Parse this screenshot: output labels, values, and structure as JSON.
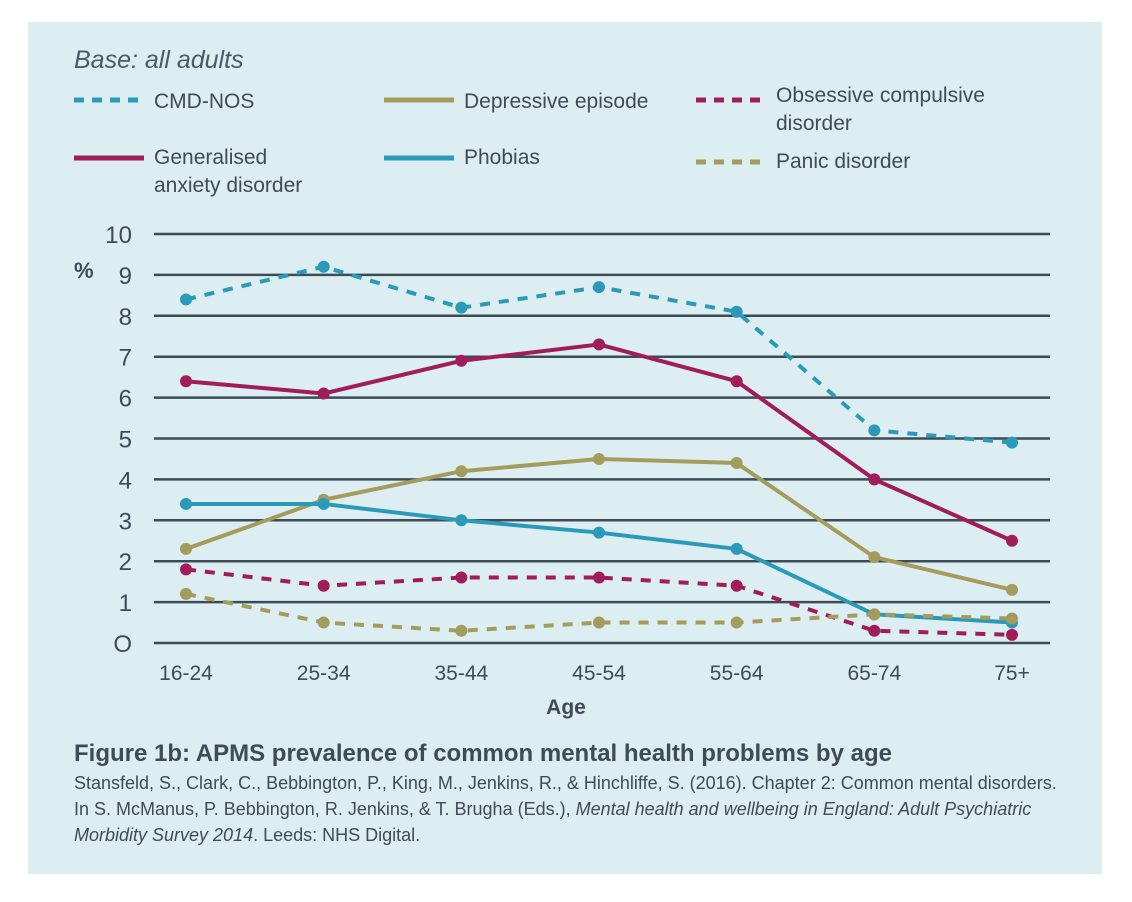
{
  "base_label": "Base: all adults",
  "legend": [
    {
      "label": "CMD-NOS",
      "color": "#2a9ab8",
      "dash": true
    },
    {
      "label": "Depressive episode",
      "color": "#a49c5c",
      "dash": false
    },
    {
      "label": "Obsessive compulsive disorder",
      "color": "#a01c5a",
      "dash": true
    },
    {
      "label": "Generalised anxiety disorder",
      "color": "#a01c5a",
      "dash": false
    },
    {
      "label": "Phobias",
      "color": "#2a9ab8",
      "dash": false
    },
    {
      "label": "Panic disorder",
      "color": "#a49c5c",
      "dash": true
    }
  ],
  "chart_data": {
    "type": "line",
    "categories": [
      "16-24",
      "25-34",
      "35-44",
      "45-54",
      "55-64",
      "65-74",
      "75+"
    ],
    "xlabel": "Age",
    "ylabel": "%",
    "ylim": [
      0,
      10
    ],
    "yticks": [
      "O",
      "1",
      "2",
      "3",
      "4",
      "5",
      "6",
      "7",
      "8",
      "9",
      "10"
    ],
    "grid": true,
    "legend_position": "top",
    "series": [
      {
        "name": "CMD-NOS",
        "color": "#2a9ab8",
        "dash": true,
        "values": [
          8.4,
          9.2,
          8.2,
          8.7,
          8.1,
          5.2,
          4.9
        ]
      },
      {
        "name": "Generalised anxiety disorder",
        "color": "#a01c5a",
        "dash": false,
        "values": [
          6.4,
          6.1,
          6.9,
          7.3,
          6.4,
          4.0,
          2.5
        ]
      },
      {
        "name": "Depressive episode",
        "color": "#a49c5c",
        "dash": false,
        "values": [
          2.3,
          3.5,
          4.2,
          4.5,
          4.4,
          2.1,
          1.3
        ]
      },
      {
        "name": "Phobias",
        "color": "#2a9ab8",
        "dash": false,
        "values": [
          3.4,
          3.4,
          3.0,
          2.7,
          2.3,
          0.7,
          0.5
        ]
      },
      {
        "name": "Obsessive compulsive disorder",
        "color": "#a01c5a",
        "dash": true,
        "values": [
          1.8,
          1.4,
          1.6,
          1.6,
          1.4,
          0.3,
          0.2
        ]
      },
      {
        "name": "Panic disorder",
        "color": "#a49c5c",
        "dash": true,
        "values": [
          1.2,
          0.5,
          0.3,
          0.5,
          0.5,
          0.7,
          0.6
        ]
      }
    ]
  },
  "figure_title": "Figure 1b: APMS prevalence of common mental health problems by age",
  "citation": {
    "part1": "Stansfeld, S., Clark, C., Bebbington, P., King, M., Jenkins, R., & Hinchliffe, S. (2016). Chapter 2: Common mental disorders. In S. McManus, P. Bebbington, R. Jenkins, & T. Brugha (Eds.), ",
    "italic": "Mental health and wellbeing in England: Adult Psychiatric Morbidity Survey 2014",
    "part2": ". Leeds: NHS Digital."
  }
}
